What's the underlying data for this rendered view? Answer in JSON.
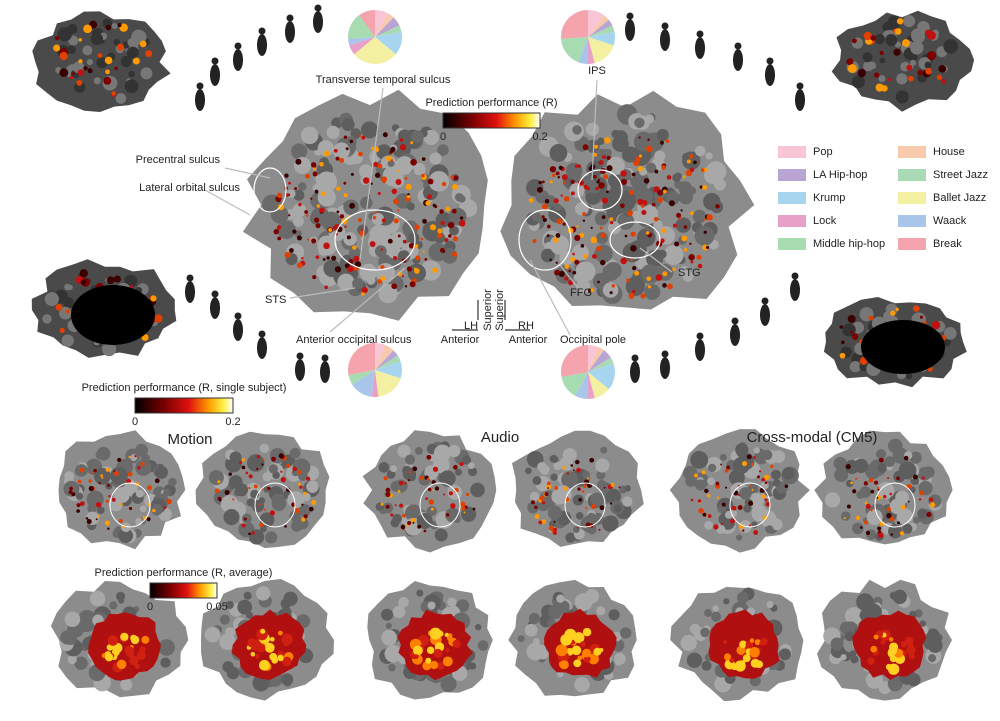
{
  "labels": {
    "transverse": "Transverse temporal sulcus",
    "ips": "IPS",
    "precentral": "Precentral sulcus",
    "lateral_orbital": "Lateral orbital sulcus",
    "sts": "STS",
    "anterior_occipital": "Anterior occipital sulcus",
    "stg": "STG",
    "ffg": "FFG",
    "occipital_pole": "Occipital pole",
    "lh": "LH",
    "rh": "RH",
    "superior_left": "Superior",
    "superior_right": "Superior",
    "anterior_left": "Anterior",
    "anterior_right": "Anterior"
  },
  "colorbars": [
    {
      "title": "Prediction performance (R)",
      "min": 0,
      "max": 0.2
    },
    {
      "title": "Prediction performance (R, single subject)",
      "min": 0,
      "max": 0.2
    },
    {
      "title": "Prediction performance (R, average)",
      "min": 0,
      "max": 0.05
    }
  ],
  "legend": [
    {
      "name": "Pop",
      "color": "#f7c5d5"
    },
    {
      "name": "House",
      "color": "#f8c9ac"
    },
    {
      "name": "LA Hip-hop",
      "color": "#b9a5d4"
    },
    {
      "name": "Street Jazz",
      "color": "#a8dab5"
    },
    {
      "name": "Krump",
      "color": "#a7d4ef"
    },
    {
      "name": "Ballet Jazz",
      "color": "#f3f0a2"
    },
    {
      "name": "Lock",
      "color": "#e8a0c8"
    },
    {
      "name": "Waack",
      "color": "#a9c6ea"
    },
    {
      "name": "Middle hip-hop",
      "color": "#a7dcb0"
    },
    {
      "name": "Break",
      "color": "#f5a3ad"
    }
  ],
  "pies": [
    {
      "values": [
        8,
        4,
        6,
        4,
        14,
        28,
        6,
        4,
        16,
        10
      ]
    },
    {
      "values": [
        10,
        4,
        4,
        4,
        8,
        16,
        4,
        6,
        18,
        26
      ]
    },
    {
      "values": [
        6,
        6,
        4,
        4,
        10,
        18,
        4,
        14,
        6,
        28
      ]
    },
    {
      "values": [
        6,
        4,
        6,
        4,
        16,
        10,
        4,
        8,
        14,
        28
      ]
    }
  ],
  "panels": [
    {
      "title": "Motion"
    },
    {
      "title": "Audio"
    },
    {
      "title": "Cross-modal (CM5)"
    }
  ]
}
